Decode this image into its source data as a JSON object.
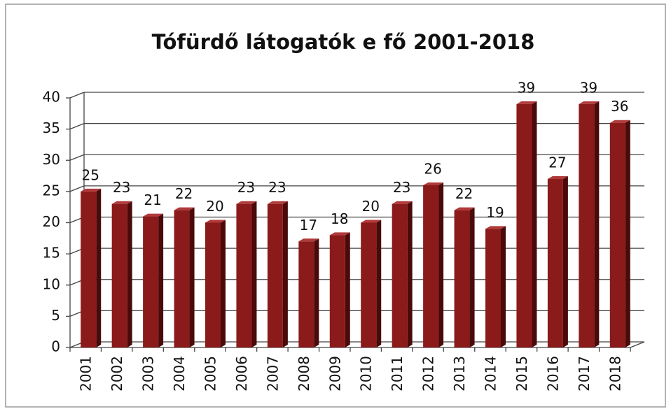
{
  "chart_data": {
    "type": "bar",
    "title": "Tófürdő látogatók e fő 2001-2018",
    "categories": [
      "2001",
      "2002",
      "2003",
      "2004",
      "2005",
      "2006",
      "2007",
      "2008",
      "2009",
      "2010",
      "2011",
      "2012",
      "2013",
      "2014",
      "2015",
      "2016",
      "2017",
      "2018"
    ],
    "values": [
      25,
      23,
      21,
      22,
      20,
      23,
      23,
      17,
      18,
      20,
      23,
      26,
      22,
      19,
      39,
      27,
      39,
      36
    ],
    "color": "#8b1a1a",
    "ylim": [
      0,
      40
    ],
    "yticks": [
      0,
      5,
      10,
      15,
      20,
      25,
      30,
      35,
      40
    ],
    "grid": true
  }
}
